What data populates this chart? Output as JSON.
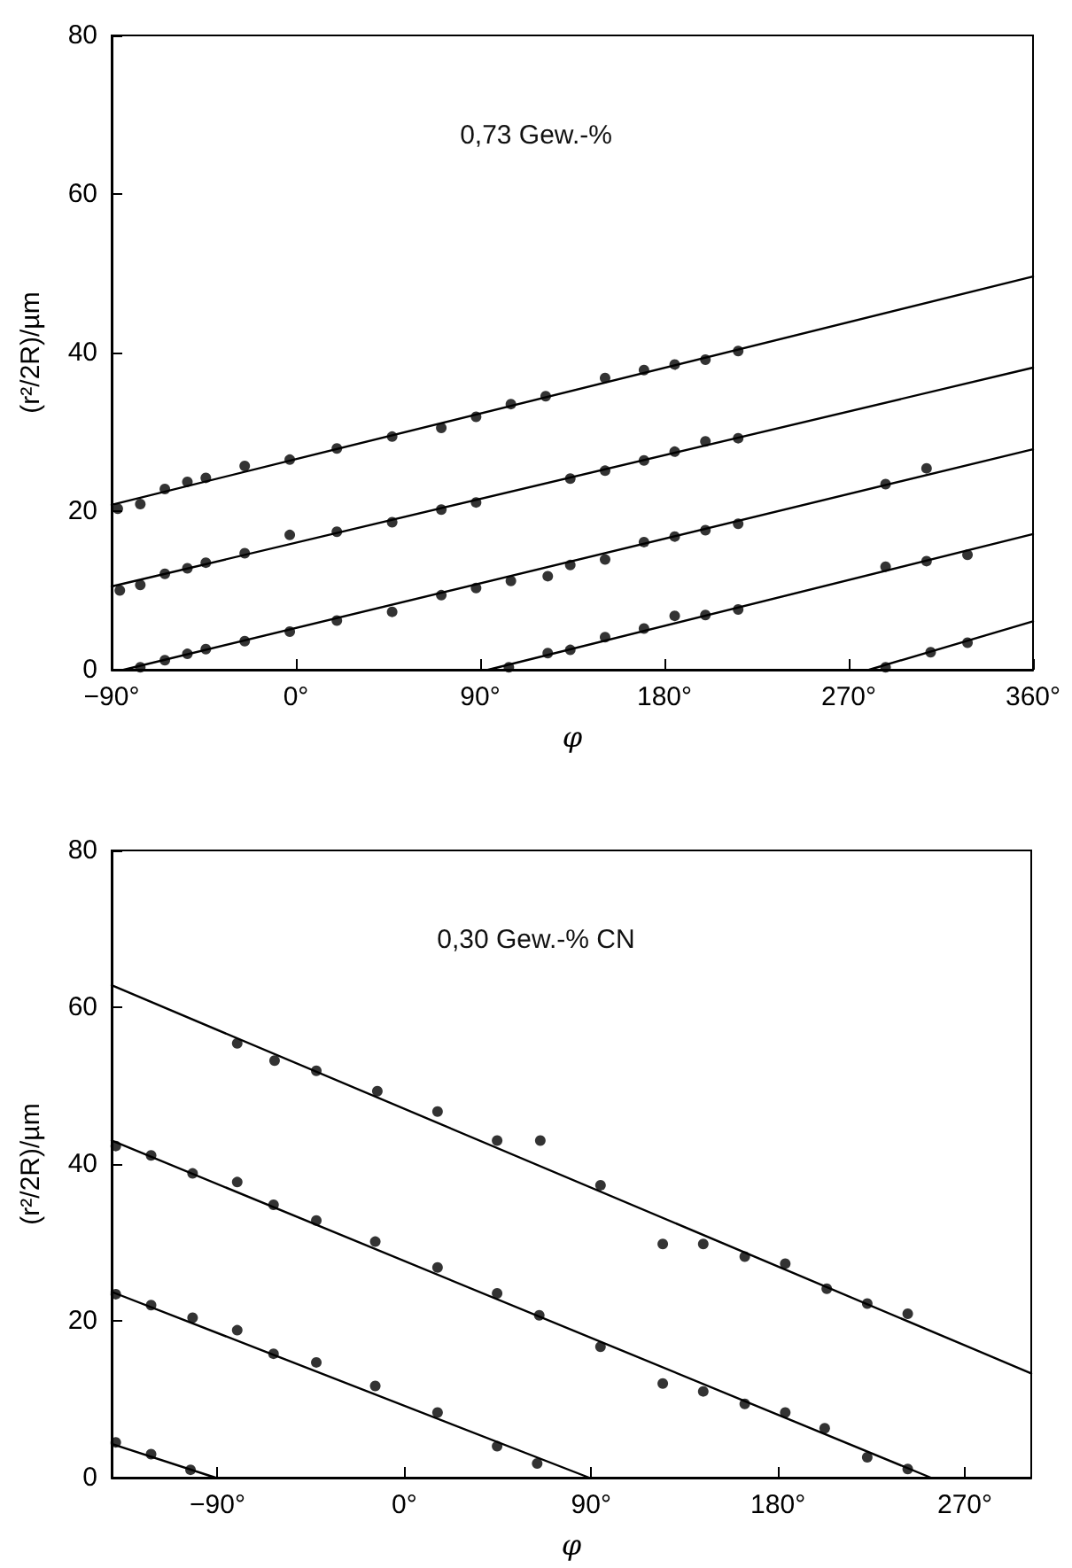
{
  "chart_data": [
    {
      "type": "scatter",
      "title": "0,73 Gew.-%",
      "xlabel": "φ",
      "ylabel": "(r²/2R)/µm",
      "xlim": [
        -90,
        360
      ],
      "ylim": [
        0,
        80
      ],
      "xticks": [
        {
          "value": -90,
          "label": "−90°"
        },
        {
          "value": 0,
          "label": "0°"
        },
        {
          "value": 90,
          "label": "90°"
        },
        {
          "value": 180,
          "label": "180°"
        },
        {
          "value": 270,
          "label": "270°"
        },
        {
          "value": 360,
          "label": "360°"
        }
      ],
      "yticks": [
        0,
        20,
        40,
        60,
        80
      ],
      "marker": "circle",
      "line_style": "solid",
      "series": [
        {
          "color": "#000000",
          "x": [
            -87,
            -76,
            -64,
            -53,
            -44,
            -25,
            -3,
            20,
            47,
            71,
            88,
            105,
            122,
            151,
            170,
            185,
            200,
            216
          ],
          "values": [
            20.3,
            20.9,
            22.8,
            23.7,
            24.2,
            25.7,
            26.5,
            27.9,
            29.4,
            30.5,
            31.9,
            33.5,
            34.5,
            36.8,
            37.8,
            38.5,
            39.1,
            40.2
          ]
        },
        {
          "color": "#000000",
          "x": [
            -86,
            -76,
            -64,
            -53,
            -44,
            -25,
            -3,
            20,
            47,
            71,
            88,
            134,
            151,
            170,
            185,
            200,
            216
          ],
          "values": [
            10.0,
            10.7,
            12.1,
            12.8,
            13.5,
            14.7,
            17.0,
            17.4,
            18.6,
            20.2,
            21.1,
            24.1,
            25.1,
            26.4,
            27.5,
            28.8,
            29.2
          ]
        },
        {
          "color": "#000000",
          "x": [
            -76,
            -64,
            -53,
            -44,
            -25,
            -3,
            20,
            47,
            71,
            88,
            105,
            123,
            134,
            151,
            170,
            185,
            200,
            216,
            288,
            308
          ],
          "values": [
            0.3,
            1.2,
            2.0,
            2.6,
            3.6,
            4.8,
            6.2,
            7.3,
            9.4,
            10.3,
            11.2,
            11.8,
            13.2,
            13.9,
            16.1,
            16.8,
            17.6,
            18.4,
            23.4,
            25.4
          ]
        },
        {
          "color": "#000000",
          "x": [
            104,
            123,
            134,
            151,
            170,
            185,
            200,
            216,
            288,
            308,
            328
          ],
          "values": [
            0.3,
            2.1,
            2.5,
            4.1,
            5.2,
            6.8,
            6.9,
            7.6,
            13.0,
            13.7,
            14.5
          ]
        },
        {
          "color": "#000000",
          "x": [
            288,
            310,
            328
          ],
          "values": [
            0.3,
            2.2,
            3.4
          ]
        },
        {
          "type": "line",
          "marker": "none",
          "color": "#000000",
          "x": [
            -90,
            360
          ],
          "values": [
            20.8,
            49.6
          ]
        },
        {
          "type": "line",
          "marker": "none",
          "color": "#000000",
          "x": [
            -90,
            360
          ],
          "values": [
            10.5,
            38.1
          ]
        },
        {
          "type": "line",
          "marker": "none",
          "color": "#000000",
          "x": [
            -84,
            360
          ],
          "values": [
            0,
            27.8
          ]
        },
        {
          "type": "line",
          "marker": "none",
          "color": "#000000",
          "x": [
            94,
            360
          ],
          "values": [
            0,
            17.1
          ]
        },
        {
          "type": "line",
          "marker": "none",
          "color": "#000000",
          "x": [
            280,
            360
          ],
          "values": [
            0,
            6.1
          ]
        }
      ]
    },
    {
      "type": "scatter",
      "title": "0,30 Gew.-% CN",
      "xlabel": "φ",
      "ylabel": "(r²/2R)/µm",
      "xlim": [
        -141,
        302
      ],
      "ylim": [
        0,
        80
      ],
      "xticks": [
        {
          "value": -90,
          "label": "−90°"
        },
        {
          "value": 0,
          "label": "0°"
        },
        {
          "value": 90,
          "label": "90°"
        },
        {
          "value": 180,
          "label": "180°"
        },
        {
          "value": 270,
          "label": "270°"
        }
      ],
      "yticks": [
        0,
        20,
        40,
        60,
        80
      ],
      "marker": "circle",
      "line_style": "solid",
      "series": [
        {
          "color": "#000000",
          "x": [
            -80.5,
            -62.5,
            -42.4,
            -13,
            16,
            44.7,
            65.5,
            94.5,
            124.5,
            144,
            164,
            183.5,
            203.5,
            223,
            242.5
          ],
          "values": [
            55.4,
            53.2,
            51.9,
            49.3,
            46.7,
            43.0,
            43.0,
            37.3,
            29.8,
            29.8,
            28.2,
            27.3,
            24.1,
            22.2,
            20.9
          ]
        },
        {
          "color": "#000000",
          "x": [
            -139,
            -122,
            -102,
            -80.5,
            -63,
            -42.4,
            -14,
            16,
            44.7,
            65,
            94.5,
            124.5,
            144,
            164,
            183.5,
            202.5,
            223,
            242.5
          ],
          "values": [
            42.3,
            41.1,
            38.8,
            37.7,
            34.8,
            32.8,
            30.1,
            26.8,
            23.5,
            20.7,
            16.7,
            12.0,
            11.0,
            9.4,
            8.3,
            6.3,
            2.6,
            1.1
          ]
        },
        {
          "color": "#000000",
          "x": [
            -139,
            -122,
            -102,
            -80.5,
            -63,
            -42.4,
            -14,
            16,
            44.7,
            64
          ],
          "values": [
            23.4,
            22.0,
            20.4,
            18.8,
            15.8,
            14.7,
            11.7,
            8.3,
            4.0,
            1.8
          ]
        },
        {
          "color": "#000000",
          "x": [
            -139,
            -122,
            -103
          ],
          "values": [
            4.5,
            3.0,
            1.0
          ]
        },
        {
          "type": "line",
          "marker": "none",
          "color": "#000000",
          "x": [
            -141,
            302
          ],
          "values": [
            62.8,
            13.3
          ]
        },
        {
          "type": "line",
          "marker": "none",
          "color": "#000000",
          "x": [
            -141,
            253.6
          ],
          "values": [
            43.0,
            0
          ]
        },
        {
          "type": "line",
          "marker": "none",
          "color": "#000000",
          "x": [
            -141,
            89
          ],
          "values": [
            23.7,
            0
          ]
        },
        {
          "type": "line",
          "marker": "none",
          "color": "#000000",
          "x": [
            -141,
            -91
          ],
          "values": [
            4.3,
            0
          ]
        }
      ]
    }
  ]
}
